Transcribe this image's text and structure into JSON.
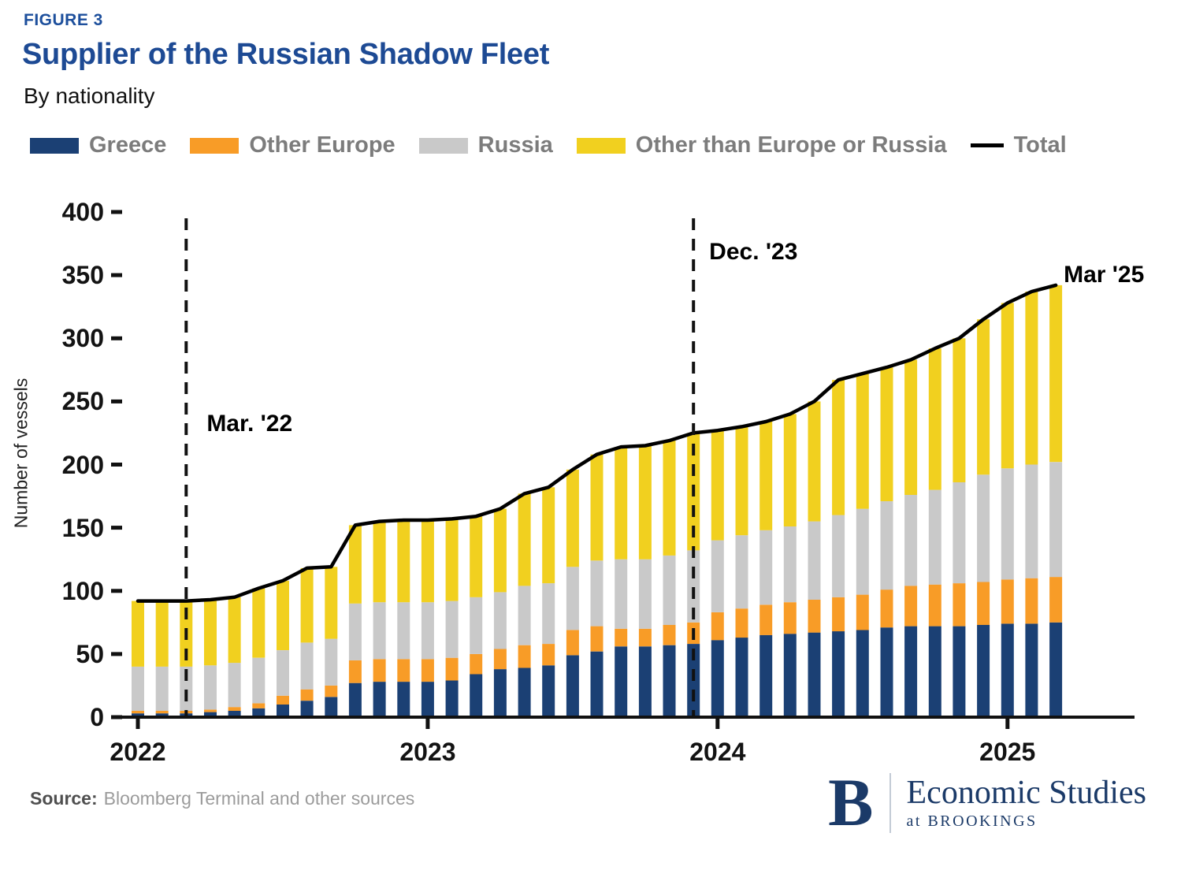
{
  "figure_label": "FIGURE 3",
  "title": "Supplier of the Russian Shadow Fleet",
  "subtitle": "By nationality",
  "legend": {
    "items": [
      {
        "label": "Greece",
        "color": "#1b4074",
        "type": "box"
      },
      {
        "label": "Other Europe",
        "color": "#f89c27",
        "type": "box"
      },
      {
        "label": "Russia",
        "color": "#c9c9c9",
        "type": "box"
      },
      {
        "label": "Other than Europe or Russia",
        "color": "#f1d01f",
        "type": "box"
      },
      {
        "label": "Total",
        "color": "#000000",
        "type": "line"
      }
    ]
  },
  "chart_data": {
    "type": "bar",
    "stacked": true,
    "title": "Supplier of the Russian Shadow Fleet",
    "subtitle": "By nationality",
    "ylabel": "Number of vessels",
    "ylim": [
      0,
      400
    ],
    "y_ticks": [
      0,
      50,
      100,
      150,
      200,
      250,
      300,
      350,
      400
    ],
    "x_year_labels": [
      "2022",
      "2023",
      "2024",
      "2025"
    ],
    "year_tick_indices": [
      0,
      12,
      24,
      36
    ],
    "legend_position": "top",
    "grid": false,
    "categories": [
      "2022-01",
      "2022-02",
      "2022-03",
      "2022-04",
      "2022-05",
      "2022-06",
      "2022-07",
      "2022-08",
      "2022-09",
      "2022-10",
      "2022-11",
      "2022-12",
      "2023-01",
      "2023-02",
      "2023-03",
      "2023-04",
      "2023-05",
      "2023-06",
      "2023-07",
      "2023-08",
      "2023-09",
      "2023-10",
      "2023-11",
      "2023-12",
      "2024-01",
      "2024-02",
      "2024-03",
      "2024-04",
      "2024-05",
      "2024-06",
      "2024-07",
      "2024-08",
      "2024-09",
      "2024-10",
      "2024-11",
      "2024-12",
      "2025-01",
      "2025-02",
      "2025-03"
    ],
    "series": [
      {
        "name": "Greece",
        "color": "#1b4074",
        "values": [
          3,
          3,
          3,
          4,
          5,
          7,
          10,
          13,
          16,
          27,
          28,
          28,
          28,
          29,
          34,
          38,
          39,
          41,
          49,
          52,
          56,
          56,
          57,
          58,
          61,
          63,
          65,
          66,
          67,
          68,
          69,
          71,
          72,
          72,
          72,
          73,
          74,
          74,
          75
        ]
      },
      {
        "name": "Other Europe",
        "color": "#f89c27",
        "values": [
          2,
          2,
          2,
          2,
          3,
          4,
          7,
          9,
          9,
          18,
          18,
          18,
          18,
          18,
          16,
          16,
          18,
          17,
          20,
          20,
          14,
          14,
          16,
          17,
          22,
          23,
          24,
          25,
          26,
          27,
          28,
          30,
          32,
          33,
          34,
          34,
          35,
          36,
          36
        ]
      },
      {
        "name": "Russia",
        "color": "#c9c9c9",
        "values": [
          35,
          35,
          35,
          35,
          35,
          36,
          36,
          37,
          37,
          45,
          45,
          45,
          45,
          45,
          45,
          45,
          47,
          48,
          50,
          52,
          55,
          55,
          55,
          57,
          57,
          58,
          59,
          60,
          62,
          65,
          68,
          70,
          72,
          75,
          80,
          85,
          88,
          90,
          91
        ]
      },
      {
        "name": "Other than Europe or Russia",
        "color": "#f1d01f",
        "values": [
          52,
          52,
          52,
          52,
          52,
          55,
          55,
          59,
          57,
          62,
          64,
          65,
          65,
          65,
          64,
          66,
          73,
          76,
          77,
          84,
          89,
          90,
          91,
          93,
          87,
          86,
          86,
          89,
          95,
          107,
          107,
          106,
          107,
          112,
          114,
          123,
          131,
          137,
          140
        ]
      }
    ],
    "total_line": {
      "name": "Total",
      "color": "#000000",
      "values": [
        92,
        92,
        92,
        93,
        95,
        102,
        108,
        118,
        119,
        152,
        155,
        156,
        156,
        157,
        159,
        165,
        177,
        182,
        196,
        208,
        214,
        215,
        219,
        225,
        227,
        230,
        234,
        240,
        250,
        267,
        272,
        277,
        283,
        292,
        300,
        315,
        328,
        337,
        342
      ]
    },
    "annotations": [
      {
        "text": "Mar. '22",
        "month": "2022-03",
        "month_index": 2,
        "dashed_line": true
      },
      {
        "text": "Dec. '23",
        "month": "2023-12",
        "month_index": 23,
        "dashed_line": true
      },
      {
        "text": "Mar '25",
        "month": "2025-03",
        "month_index": 38,
        "dashed_line": false
      }
    ]
  },
  "source": {
    "label": "Source:",
    "text": "Bloomberg Terminal and other sources"
  },
  "logo": {
    "letter": "B",
    "line1": "Economic Studies",
    "line2": "at BROOKINGS"
  }
}
